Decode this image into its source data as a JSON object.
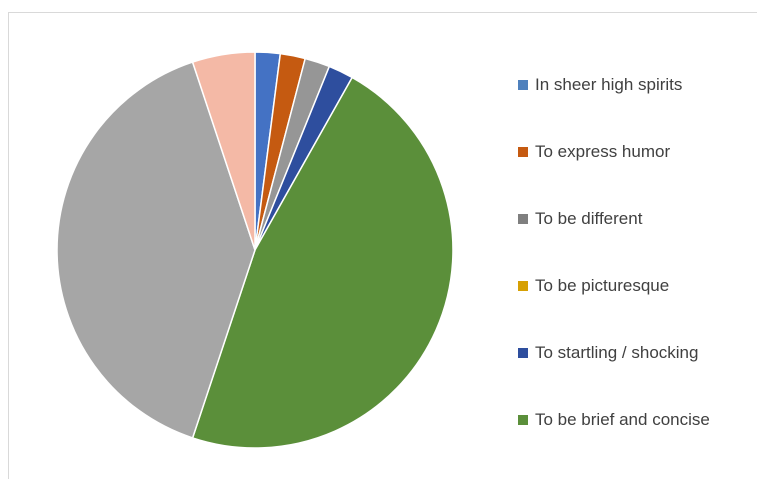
{
  "chart_data": {
    "type": "pie",
    "title": "",
    "start_angle_deg": 0,
    "direction": "clockwise",
    "slices": [
      {
        "label": "In sheer high spirits",
        "value": 2,
        "color": "#4472C4",
        "legend": true
      },
      {
        "label": "To express humor",
        "value": 2,
        "color": "#C55A11",
        "legend": true
      },
      {
        "label": "To be different",
        "value": 2,
        "color": "#969696",
        "legend": true
      },
      {
        "label": "To be picturesque",
        "value": 0,
        "color": "#D6A004",
        "legend": true
      },
      {
        "label": "To startling / shocking",
        "value": 2,
        "color": "#2E4E9E",
        "legend": true
      },
      {
        "label": "To be brief and concise",
        "value": 46,
        "color": "#5B8F3A",
        "legend": true
      },
      {
        "label": "",
        "value": 39,
        "color": "#A6A6A6",
        "legend": false
      },
      {
        "label": "",
        "value": 5,
        "color": "#F4B9A6",
        "legend": false
      }
    ],
    "legend": {
      "position": "right",
      "items": [
        {
          "label": "In sheer high spirits",
          "color": "#4F81BD"
        },
        {
          "label": "To express humor",
          "color": "#C55A11"
        },
        {
          "label": "To be different",
          "color": "#7F7F7F"
        },
        {
          "label": "To be picturesque",
          "color": "#D6A004"
        },
        {
          "label": "To startling / shocking",
          "color": "#2E4E9E"
        },
        {
          "label": "To be brief and concise",
          "color": "#5B8F3A"
        }
      ]
    }
  }
}
